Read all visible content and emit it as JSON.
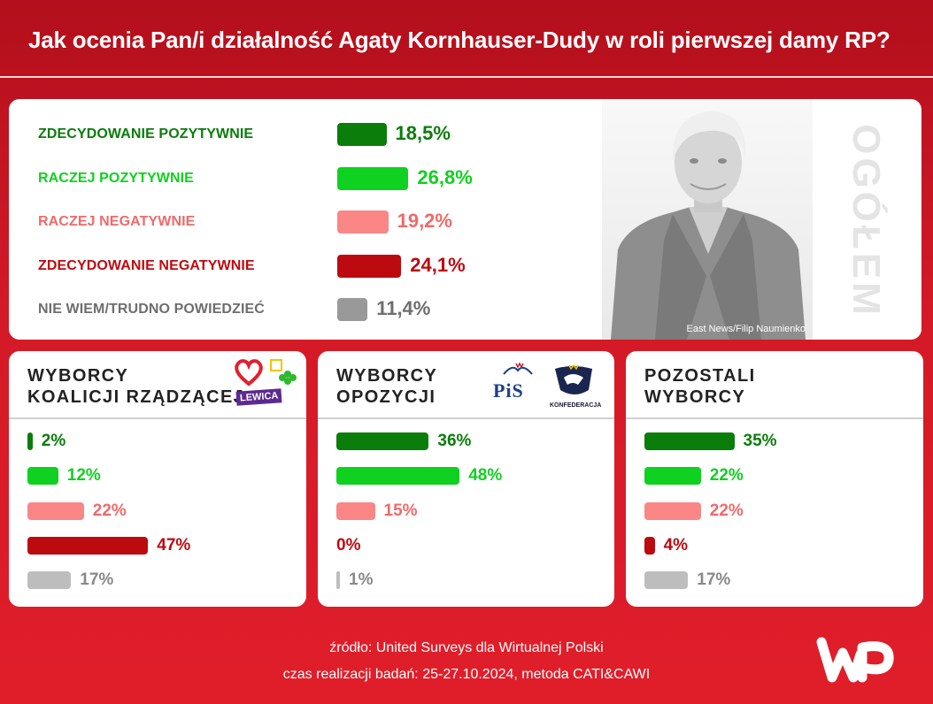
{
  "title": "Jak ocenia Pan/i działalność Agaty Kornhauser-Dudy w roli pierwszej damy RP?",
  "colors": {
    "zdecydowanie_pozytywnie": "#0a7d0a",
    "raczej_pozytywnie": "#0fd11f",
    "raczej_negatywnie": "#fa8686",
    "zdecydowanie_negatywnie": "#bd0a10",
    "nie_wiem": "#999999",
    "background": "#d31a26"
  },
  "section_label": "OGÓŁEM",
  "photo_credit": "East News/Filip Naumienko",
  "chart_data": [
    {
      "type": "bar",
      "name": "OGÓŁEM",
      "categories": [
        "ZDECYDOWANIE POZYTYWNIE",
        "RACZEJ POZYTYWNIE",
        "RACZEJ NEGATYWNIE",
        "ZDECYDOWANIE NEGATYWNIE",
        "NIE WIEM/TRUDNO POWIEDZIEĆ"
      ],
      "values": [
        18.5,
        26.8,
        19.2,
        24.1,
        11.4
      ],
      "labels": [
        "18,5%",
        "26,8%",
        "19,2%",
        "24,1%",
        "11,4%"
      ],
      "colors": [
        "#0a7d0a",
        "#0fd11f",
        "#fa8686",
        "#bd0a10",
        "#999999"
      ]
    },
    {
      "type": "bar",
      "title": "WYBORCY\nKOALICJI RZĄDZĄCEJ",
      "categories": [
        "ZDECYDOWANIE POZYTYWNIE",
        "RACZEJ POZYTYWNIE",
        "RACZEJ NEGATYWNIE",
        "ZDECYDOWANIE NEGATYWNIE",
        "NIE WIEM/TRUDNO POWIEDZIEĆ"
      ],
      "values": [
        2,
        12,
        22,
        47,
        17
      ],
      "labels": [
        "2%",
        "12%",
        "22%",
        "47%",
        "17%"
      ],
      "colors": [
        "#0a7d0a",
        "#0fd11f",
        "#fa8686",
        "#bd0a10",
        "#bdbdbd"
      ],
      "logos": [
        "heart-logo",
        "trzecia-droga-logo",
        "LEWICA"
      ]
    },
    {
      "type": "bar",
      "title": "WYBORCY\nOPOZYCJI",
      "categories": [
        "ZDECYDOWANIE POZYTYWNIE",
        "RACZEJ POZYTYWNIE",
        "RACZEJ NEGATYWNIE",
        "ZDECYDOWANIE NEGATYWNIE",
        "NIE WIEM/TRUDNO POWIEDZIEĆ"
      ],
      "values": [
        36,
        48,
        15,
        0,
        1
      ],
      "labels": [
        "36%",
        "48%",
        "15%",
        "0%",
        "1%"
      ],
      "colors": [
        "#0a7d0a",
        "#0fd11f",
        "#fa8686",
        "#bd0a10",
        "#bdbdbd"
      ],
      "logos": [
        "PiS",
        "KONFEDERACJA"
      ]
    },
    {
      "type": "bar",
      "title": "POZOSTALI\nWYBORCY",
      "categories": [
        "ZDECYDOWANIE POZYTYWNIE",
        "RACZEJ POZYTYWNIE",
        "RACZEJ NEGATYWNIE",
        "ZDECYDOWANIE NEGATYWNIE",
        "NIE WIEM/TRUDNO POWIEDZIEĆ"
      ],
      "values": [
        35,
        22,
        22,
        4,
        17
      ],
      "labels": [
        "35%",
        "22%",
        "22%",
        "4%",
        "17%"
      ],
      "colors": [
        "#0a7d0a",
        "#0fd11f",
        "#fa8686",
        "#bd0a10",
        "#bdbdbd"
      ]
    }
  ],
  "footer": {
    "source": "źródło: United Surveys dla Wirtualnej Polski",
    "period": "czas realizacji badań: 25-27.10.2024, metoda CATI&CAWI"
  },
  "brand_logo": "WP"
}
